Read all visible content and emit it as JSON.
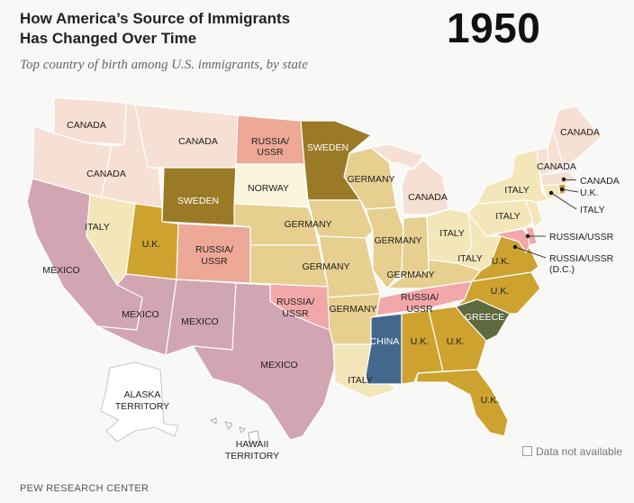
{
  "title_line1": "How America’s Source of Immigrants",
  "title_line2": "Has Changed Over Time",
  "year": "1950",
  "subtitle": "Top country of birth among U.S. immigrants, by state",
  "source": "PEW RESEARCH CENTER",
  "legend_no_data": "Data not available",
  "colors": {
    "canada": "#f6dfd3",
    "germany": "#e6cf8f",
    "italy": "#f3e6b9",
    "uk": "#cda22f",
    "sweden": "#9a7a27",
    "norway": "#fbf4dc",
    "russia_ussr": "#eda896",
    "russia_ussr_south": "#f2a7a9",
    "mexico": "#d1a5b1",
    "china": "#44688d",
    "greece": "#5d6a3f",
    "territory": "#ffffff"
  },
  "states": [
    {
      "name": "Washington",
      "country": "CANADA"
    },
    {
      "name": "Oregon",
      "country": "CANADA"
    },
    {
      "name": "Idaho",
      "country": "CANADA"
    },
    {
      "name": "Montana",
      "country": "CANADA"
    },
    {
      "name": "Wyoming",
      "country": "SWEDEN"
    },
    {
      "name": "North Dakota",
      "country": "RUSSIA/USSR"
    },
    {
      "name": "South Dakota",
      "country": "NORWAY"
    },
    {
      "name": "Minnesota",
      "country": "SWEDEN"
    },
    {
      "name": "California",
      "country": "MEXICO"
    },
    {
      "name": "Nevada",
      "country": "ITALY"
    },
    {
      "name": "Utah",
      "country": "U.K."
    },
    {
      "name": "Colorado",
      "country": "RUSSIA/USSR"
    },
    {
      "name": "Arizona",
      "country": "MEXICO"
    },
    {
      "name": "New Mexico",
      "country": "MEXICO"
    },
    {
      "name": "Texas",
      "country": "MEXICO"
    },
    {
      "name": "Oklahoma",
      "country": "RUSSIA/USSR"
    },
    {
      "name": "Nebraska",
      "country": "GERMANY"
    },
    {
      "name": "Kansas",
      "country": "GERMANY"
    },
    {
      "name": "Iowa",
      "country": "GERMANY"
    },
    {
      "name": "Missouri",
      "country": "GERMANY"
    },
    {
      "name": "Wisconsin",
      "country": "GERMANY"
    },
    {
      "name": "Illinois",
      "country": "GERMANY"
    },
    {
      "name": "Indiana",
      "country": "GERMANY"
    },
    {
      "name": "Michigan",
      "country": "CANADA"
    },
    {
      "name": "Ohio",
      "country": "ITALY"
    },
    {
      "name": "Kentucky",
      "country": "GERMANY"
    },
    {
      "name": "West Virginia",
      "country": "ITALY"
    },
    {
      "name": "Tennessee",
      "country": "RUSSIA/USSR"
    },
    {
      "name": "Arkansas",
      "country": "GERMANY"
    },
    {
      "name": "Louisiana",
      "country": "ITALY"
    },
    {
      "name": "Mississippi",
      "country": "CHINA"
    },
    {
      "name": "Alabama",
      "country": "U.K."
    },
    {
      "name": "Georgia",
      "country": "U.K."
    },
    {
      "name": "Florida",
      "country": "U.K."
    },
    {
      "name": "South Carolina",
      "country": "GREECE"
    },
    {
      "name": "North Carolina",
      "country": "U.K."
    },
    {
      "name": "Virginia",
      "country": "U.K."
    },
    {
      "name": "Maryland",
      "country": "RUSSIA/USSR"
    },
    {
      "name": "Delaware",
      "country": "RUSSIA/USSR"
    },
    {
      "name": "District of Columbia",
      "country": "RUSSIA/USSR"
    },
    {
      "name": "Pennsylvania",
      "country": "ITALY"
    },
    {
      "name": "New Jersey",
      "country": "ITALY"
    },
    {
      "name": "New York",
      "country": "ITALY"
    },
    {
      "name": "Connecticut",
      "country": "ITALY"
    },
    {
      "name": "Rhode Island",
      "country": "U.K."
    },
    {
      "name": "Massachusetts",
      "country": "CANADA"
    },
    {
      "name": "Vermont",
      "country": "CANADA"
    },
    {
      "name": "New Hampshire",
      "country": "CANADA"
    },
    {
      "name": "Maine",
      "country": "CANADA"
    }
  ],
  "labels": {
    "wa": "CANADA",
    "mt": "CANADA",
    "id": "CANADA",
    "nd_1": "RUSSIA/",
    "nd_2": "USSR",
    "mn": "SWEDEN",
    "wy": "SWEDEN",
    "sd": "NORWAY",
    "wi": "GERMANY",
    "mi": "CANADA",
    "me": "CANADA",
    "vt": "CANADA",
    "ma": "CANADA",
    "ri": "U.K.",
    "ct": "ITALY",
    "ny": "ITALY",
    "pa": "ITALY",
    "nv": "ITALY",
    "ut": "U.K.",
    "co_1": "RUSSIA/",
    "co_2": "USSR",
    "ne": "GERMANY",
    "ia": "GERMANY",
    "il": "GERMANY",
    "ks": "GERMANY",
    "oh": "ITALY",
    "wv": "ITALY",
    "va": "U.K.",
    "md": "RUSSIA/USSR",
    "dc_1": "RUSSIA/USSR",
    "dc_2": "(D.C.)",
    "ky": "GERMANY",
    "ca": "MEXICO",
    "az": "MEXICO",
    "nm": "MEXICO",
    "ok_1": "RUSSIA/",
    "ok_2": "USSR",
    "ar": "GERMANY",
    "tn_1": "RUSSIA/",
    "tn_2": "USSR",
    "nc": "U.K.",
    "sc": "GREECE",
    "ms": "CHINA",
    "al": "U.K.",
    "ga": "U.K.",
    "tx": "MEXICO",
    "la": "ITALY",
    "fl": "U.K.",
    "ak_1": "ALASKA",
    "ak_2": "TERRITORY",
    "hi_1": "HAWAII",
    "hi_2": "TERRITORY"
  }
}
